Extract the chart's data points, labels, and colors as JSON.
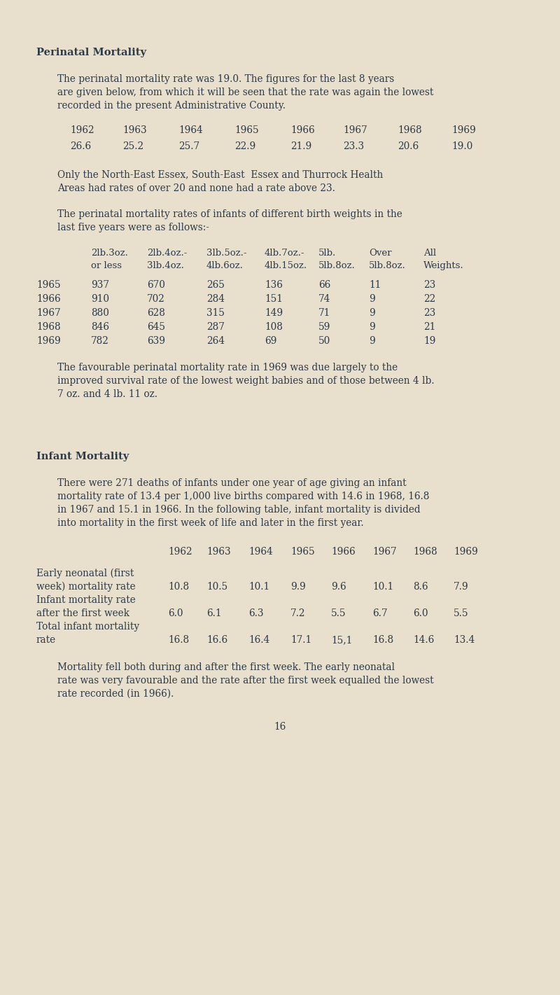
{
  "bg_color": "#e8e0cc",
  "text_color": "#2d3a4a",
  "page_number": "16",
  "section1_title": "Perinatal Mortality",
  "section1_para1_lines": [
    "The perinatal mortality rate was 19.0. The figures for the last 8 years",
    "are given below, from which it will be seen that the rate was again the lowest",
    "recorded in the present Administrative County."
  ],
  "table1_years": [
    "1962",
    "1963",
    "1964",
    "1965",
    "1966",
    "1967",
    "1968",
    "1969"
  ],
  "table1_values": [
    "26.6",
    "25.2",
    "25.7",
    "22.9",
    "21.9",
    "23.3",
    "20.6",
    "19.0"
  ],
  "section1_para2_lines": [
    "Only the North-East Essex, South-East  Essex and Thurrock Health",
    "Areas had rates of over 20 and none had a rate above 23."
  ],
  "section1_para3_lines": [
    "The perinatal mortality rates of infants of different birth weights in the",
    "last five years were as follows:-"
  ],
  "table2_col_headers_line1": [
    "2lb.3oz.",
    "2lb.4oz.-",
    "3lb.5oz.-",
    "4lb.7oz.-",
    "5lb.",
    "Over",
    "All"
  ],
  "table2_col_headers_line2": [
    "or less",
    "3lb.4oz.",
    "4lb.6oz.",
    "4lb.15oz.",
    "5lb.8oz.",
    "5lb.8oz.",
    "Weights."
  ],
  "table2_row_years": [
    "1965",
    "1966",
    "1967",
    "1968",
    "1969"
  ],
  "table2_data": [
    [
      "937",
      "670",
      "265",
      "136",
      "66",
      "11",
      "23"
    ],
    [
      "910",
      "702",
      "284",
      "151",
      "74",
      "9",
      "22"
    ],
    [
      "880",
      "628",
      "315",
      "149",
      "71",
      "9",
      "23"
    ],
    [
      "846",
      "645",
      "287",
      "108",
      "59",
      "9",
      "21"
    ],
    [
      "782",
      "639",
      "264",
      "69",
      "50",
      "9",
      "19"
    ]
  ],
  "section1_para4_lines": [
    "The favourable perinatal mortality rate in 1969 was due largely to the",
    "improved survival rate of the lowest weight babies and of those between 4 lb.",
    "7 oz. and 4 lb. 11 oz."
  ],
  "section2_title": "Infant Mortality",
  "section2_para1_lines": [
    "There were 271 deaths of infants under one year of age giving an infant",
    "mortality rate of 13.4 per 1,000 live births compared with 14.6 in 1968, 16.8",
    "in 1967 and 15.1 in 1966. In the following table, infant mortality is divided",
    "into mortality in the first week of life and later in the first year."
  ],
  "table3_years": [
    "1962",
    "1963",
    "1964",
    "1965",
    "1966",
    "1967",
    "1968",
    "1969"
  ],
  "table3_row1_label": [
    "Early neonatal (first",
    "week) mortality rate"
  ],
  "table3_row1_values": [
    "10.8",
    "10.5",
    "10.1",
    "9.9",
    "9.6",
    "10.1",
    "8.6",
    "7.9"
  ],
  "table3_row2_label": [
    "Infant mortality rate",
    "after the first week"
  ],
  "table3_row2_values": [
    "6.0",
    "6.1",
    "6.3",
    "7.2",
    "5.5",
    "6.7",
    "6.0",
    "5.5"
  ],
  "table3_row3_label": [
    "Total infant mortality",
    "rate"
  ],
  "table3_row3_values": [
    "16.8",
    "16.6",
    "16.4",
    "17.1",
    "15,1",
    "16.8",
    "14.6",
    "13.4"
  ],
  "section2_para2_lines": [
    "Mortality fell both during and after the first week. The early neonatal",
    "rate was very favourable and the rate after the first week equalled the lowest",
    "rate recorded (in 1966)."
  ]
}
